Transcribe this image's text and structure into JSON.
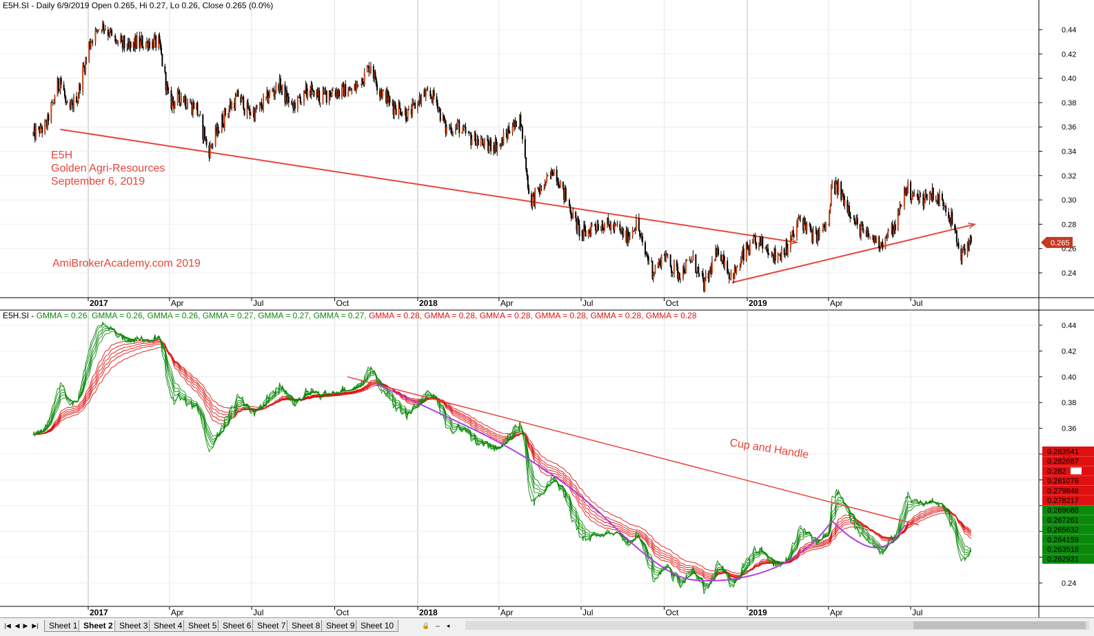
{
  "header_top": "E5H.SI - Daily 6/9/2019 Open 0.265, Hi 0.27, Lo 0.26, Close 0.265 (0.0%)",
  "header_bottom_prefix": "E5H.SI - ",
  "gmma_labels": [
    {
      "text": "GMMA = 0.26,",
      "color": "#0a8a0a"
    },
    {
      "text": "GMMA = 0.26,",
      "color": "#0a8a0a"
    },
    {
      "text": "GMMA = 0.26,",
      "color": "#0a8a0a"
    },
    {
      "text": "GMMA = 0.27,",
      "color": "#0a8a0a"
    },
    {
      "text": "GMMA = 0.27,",
      "color": "#0a8a0a"
    },
    {
      "text": "GMMA = 0.27,",
      "color": "#0a8a0a"
    },
    {
      "text": "GMMA = 0.28,",
      "color": "#e01010"
    },
    {
      "text": "GMMA = 0.28,",
      "color": "#e01010"
    },
    {
      "text": "GMMA = 0.28,",
      "color": "#e01010"
    },
    {
      "text": "GMMA = 0.28,",
      "color": "#e01010"
    },
    {
      "text": "GMMA = 0.28,",
      "color": "#e01010"
    },
    {
      "text": "GMMA = 0.28",
      "color": "#e01010"
    }
  ],
  "annotations": {
    "ticker": "E5H",
    "company": "Golden Agri-Resources",
    "date": "September 6, 2019",
    "site": "AmiBrokerAcademy.com   2019",
    "pattern": "Cup and Handle"
  },
  "price_tag": "0.265",
  "tabs": [
    "Sheet 1",
    "Sheet 2",
    "Sheet 3",
    "Sheet 4",
    "Sheet 5",
    "Sheet 6",
    "Sheet 7",
    "Sheet 8",
    "Sheet 9",
    "Sheet 10"
  ],
  "active_tab": "Sheet 2",
  "colors": {
    "short_ema": "#0a8a0a",
    "long_ema": "#e01010",
    "trend": "#e8443a",
    "cup": "#b040e0",
    "candle_up": "#d04010",
    "candle_down": "#000000"
  },
  "chart_data": [
    {
      "type": "candlestick",
      "title": "E5H.SI - Daily 6/9/2019 Open 0.265, Hi 0.27, Lo 0.26, Close 0.265 (0.0%)",
      "ylim": [
        0.22,
        0.46
      ],
      "y_ticks": [
        "0.44",
        "0.42",
        "0.40",
        "0.38",
        "0.36",
        "0.34",
        "0.32",
        "0.30",
        "0.28",
        "0.26",
        "0.24"
      ],
      "x_ticks": [
        {
          "label": "2017",
          "bold": true
        },
        {
          "label": "Apr",
          "bold": false
        },
        {
          "label": "Jul",
          "bold": false
        },
        {
          "label": "Oct",
          "bold": false
        },
        {
          "label": "2018",
          "bold": true
        },
        {
          "label": "Apr",
          "bold": false
        },
        {
          "label": "Jul",
          "bold": false
        },
        {
          "label": "Oct",
          "bold": false
        },
        {
          "label": "2019",
          "bold": true
        },
        {
          "label": "Apr",
          "bold": false
        },
        {
          "label": "Jul",
          "bold": false
        }
      ],
      "close_path": [
        [
          "2016-11-01",
          0.355
        ],
        [
          "2016-11-15",
          0.36
        ],
        [
          "2016-12-01",
          0.4
        ],
        [
          "2016-12-10",
          0.37
        ],
        [
          "2016-12-20",
          0.385
        ],
        [
          "2017-01-03",
          0.43
        ],
        [
          "2017-01-15",
          0.445
        ],
        [
          "2017-02-01",
          0.43
        ],
        [
          "2017-02-15",
          0.425
        ],
        [
          "2017-03-01",
          0.43
        ],
        [
          "2017-03-20",
          0.43
        ],
        [
          "2017-04-01",
          0.38
        ],
        [
          "2017-04-15",
          0.385
        ],
        [
          "2017-05-01",
          0.375
        ],
        [
          "2017-05-15",
          0.34
        ],
        [
          "2017-06-01",
          0.37
        ],
        [
          "2017-06-15",
          0.385
        ],
        [
          "2017-07-01",
          0.37
        ],
        [
          "2017-07-15",
          0.38
        ],
        [
          "2017-08-01",
          0.395
        ],
        [
          "2017-08-15",
          0.375
        ],
        [
          "2017-09-01",
          0.39
        ],
        [
          "2017-09-15",
          0.385
        ],
        [
          "2017-10-01",
          0.39
        ],
        [
          "2017-10-20",
          0.39
        ],
        [
          "2017-11-01",
          0.4
        ],
        [
          "2017-11-10",
          0.41
        ],
        [
          "2017-11-20",
          0.39
        ],
        [
          "2017-12-01",
          0.38
        ],
        [
          "2017-12-20",
          0.37
        ],
        [
          "2018-01-05",
          0.385
        ],
        [
          "2018-01-20",
          0.385
        ],
        [
          "2018-02-01",
          0.36
        ],
        [
          "2018-02-15",
          0.36
        ],
        [
          "2018-03-01",
          0.35
        ],
        [
          "2018-03-20",
          0.345
        ],
        [
          "2018-04-01",
          0.345
        ],
        [
          "2018-04-15",
          0.36
        ],
        [
          "2018-04-25",
          0.365
        ],
        [
          "2018-05-05",
          0.3
        ],
        [
          "2018-05-20",
          0.31
        ],
        [
          "2018-06-01",
          0.325
        ],
        [
          "2018-06-15",
          0.3
        ],
        [
          "2018-07-01",
          0.27
        ],
        [
          "2018-07-15",
          0.28
        ],
        [
          "2018-08-01",
          0.28
        ],
        [
          "2018-08-20",
          0.27
        ],
        [
          "2018-09-01",
          0.28
        ],
        [
          "2018-09-10",
          0.255
        ],
        [
          "2018-09-20",
          0.24
        ],
        [
          "2018-10-01",
          0.255
        ],
        [
          "2018-10-15",
          0.24
        ],
        [
          "2018-11-01",
          0.25
        ],
        [
          "2018-11-15",
          0.23
        ],
        [
          "2018-12-01",
          0.26
        ],
        [
          "2018-12-15",
          0.235
        ],
        [
          "2019-01-01",
          0.26
        ],
        [
          "2019-01-15",
          0.265
        ],
        [
          "2019-02-01",
          0.255
        ],
        [
          "2019-02-15",
          0.26
        ],
        [
          "2019-03-01",
          0.285
        ],
        [
          "2019-03-15",
          0.27
        ],
        [
          "2019-04-01",
          0.28
        ],
        [
          "2019-04-05",
          0.315
        ],
        [
          "2019-04-20",
          0.3
        ],
        [
          "2019-05-01",
          0.28
        ],
        [
          "2019-05-15",
          0.27
        ],
        [
          "2019-06-01",
          0.265
        ],
        [
          "2019-06-15",
          0.28
        ],
        [
          "2019-06-25",
          0.31
        ],
        [
          "2019-07-10",
          0.3
        ],
        [
          "2019-07-25",
          0.305
        ],
        [
          "2019-08-10",
          0.295
        ],
        [
          "2019-08-20",
          0.27
        ],
        [
          "2019-08-25",
          0.255
        ],
        [
          "2019-09-06",
          0.265
        ]
      ],
      "trend_lines": [
        {
          "from": [
            "2016-12-01",
            0.358
          ],
          "to": [
            "2019-02-25",
            0.265
          ]
        },
        {
          "from": [
            "2018-12-15",
            0.232
          ],
          "to": [
            "2019-09-10",
            0.28
          ]
        }
      ],
      "last_price": 0.265
    },
    {
      "type": "line",
      "title": "GMMA",
      "ylim": [
        0.22,
        0.46
      ],
      "y_ticks": [
        "0.44",
        "0.42",
        "0.40",
        "0.38",
        "0.36",
        "0.34",
        "0.32",
        "0.30",
        "0.28",
        "0.26",
        "0.24"
      ],
      "series": [
        {
          "name": "GMMA short",
          "color": "#0a8a0a",
          "values": [
            0.26,
            0.26,
            0.26,
            0.27,
            0.27,
            0.27
          ]
        },
        {
          "name": "GMMA long",
          "color": "#e01010",
          "values": [
            0.28,
            0.28,
            0.28,
            0.28,
            0.28,
            0.28
          ]
        }
      ],
      "value_tags": [
        {
          "text": "0.283541",
          "color": "#e01010"
        },
        {
          "text": "0.282687",
          "color": "#e01010"
        },
        {
          "text": "0.282",
          "color": "#e01010"
        },
        {
          "text": "0.281076",
          "color": "#e01010"
        },
        {
          "text": "0.279848",
          "color": "#e01010"
        },
        {
          "text": "0.278217",
          "color": "#e01010"
        },
        {
          "text": "0.269688",
          "color": "#0a8a0a"
        },
        {
          "text": "0.267261",
          "color": "#0a8a0a"
        },
        {
          "text": "0.265632",
          "color": "#0a8a0a"
        },
        {
          "text": "0.264159",
          "color": "#0a8a0a"
        },
        {
          "text": "0.263518",
          "color": "#0a8a0a"
        },
        {
          "text": "0.262931",
          "color": "#0a8a0a"
        }
      ],
      "trend_line": {
        "from": [
          "2017-10-15",
          0.4
        ],
        "to": [
          "2019-07-10",
          0.285
        ]
      },
      "cup_curve": [
        [
          "2017-11-15",
          0.395
        ],
        [
          "2018-06-01",
          0.33
        ],
        [
          "2018-10-01",
          0.245
        ],
        [
          "2018-12-01",
          0.24
        ],
        [
          "2019-02-01",
          0.25
        ],
        [
          "2019-03-15",
          0.27
        ],
        [
          "2019-04-05",
          0.288
        ]
      ],
      "handle_curve": [
        [
          "2019-04-05",
          0.288
        ],
        [
          "2019-04-25",
          0.275
        ],
        [
          "2019-05-20",
          0.266
        ],
        [
          "2019-06-10",
          0.27
        ],
        [
          "2019-06-25",
          0.285
        ]
      ]
    }
  ]
}
